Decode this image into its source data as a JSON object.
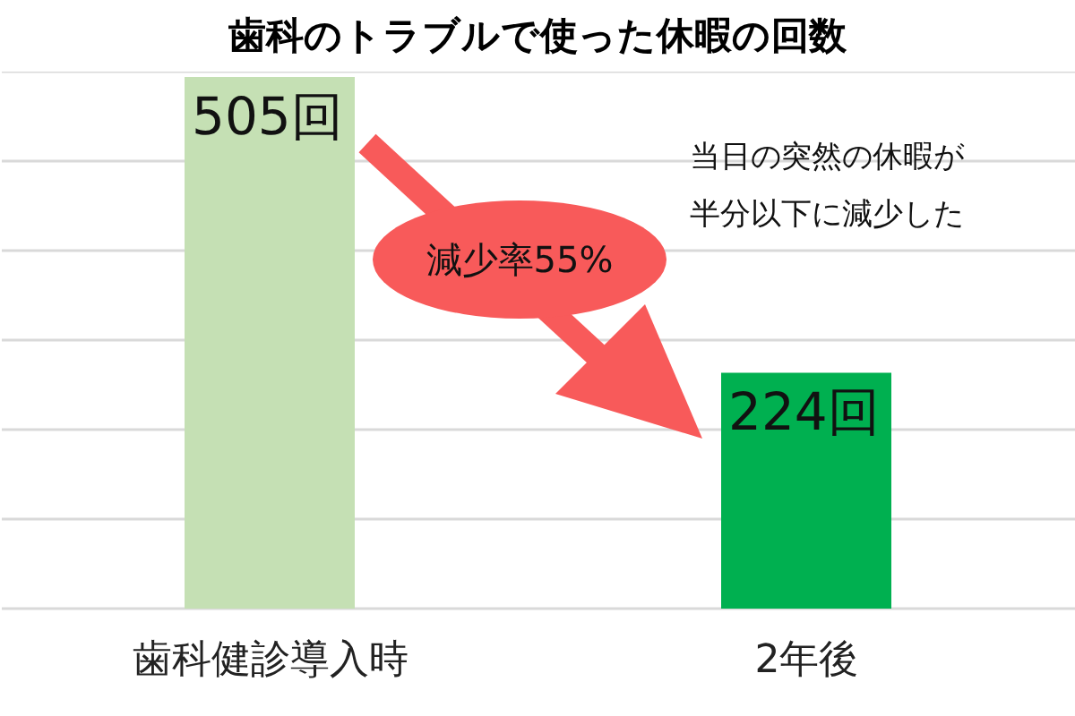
{
  "chart_data": {
    "type": "bar",
    "title": "歯科のトラブルで使った休暇の回数",
    "categories": [
      "歯科健診導入時",
      "2年後"
    ],
    "values": [
      505,
      224
    ],
    "colors": [
      "#c5e0b4",
      "#00b050"
    ],
    "value_labels": [
      "505回",
      "224回"
    ],
    "grid": "y",
    "tick_labels": "x",
    "legend": false,
    "annotations": [
      "減少率55%",
      "当日の突然の休暇が半分以下に減少した"
    ]
  }
}
